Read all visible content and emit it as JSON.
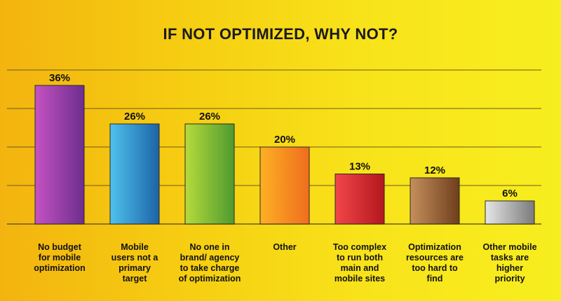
{
  "chart_data": {
    "type": "bar",
    "title": "IF NOT OPTIMIZED, WHY NOT?",
    "categories": [
      "No budget for mobile optimization",
      "Mobile users not a primary target",
      "No one in brand/ agency to take charge of optimization",
      "Other",
      "Too complex to run both main and mobile sites",
      "Optimization resources are too hard to find",
      "Other mobile tasks are higher priority"
    ],
    "category_lines": [
      [
        "No budget",
        "for mobile",
        "optimization"
      ],
      [
        "Mobile",
        "users not a",
        "primary",
        "target"
      ],
      [
        "No one in",
        "brand/ agency",
        "to take charge",
        "of optimization"
      ],
      [
        "Other"
      ],
      [
        "Too complex",
        "to run both",
        "main and",
        "mobile sites"
      ],
      [
        "Optimization",
        "resources are",
        "too hard to",
        "find"
      ],
      [
        "Other mobile",
        "tasks are",
        "higher",
        "priority"
      ]
    ],
    "values": [
      36,
      26,
      26,
      20,
      13,
      12,
      6
    ],
    "value_labels": [
      "36%",
      "26%",
      "26%",
      "20%",
      "13%",
      "12%",
      "6%"
    ],
    "ylim": [
      0,
      40
    ],
    "gridlines": [
      0,
      10,
      20,
      30,
      40
    ],
    "grid": true,
    "xlabel": "",
    "ylabel": "",
    "bar_colors": [
      [
        "#c552c2",
        "#6d2e8e"
      ],
      [
        "#4fc2ee",
        "#1c63a6"
      ],
      [
        "#b6db3c",
        "#4f9a2f"
      ],
      [
        "#fdb023",
        "#ef6d1e"
      ],
      [
        "#f2464a",
        "#b3171d"
      ],
      [
        "#c6905d",
        "#6e3e1c"
      ],
      [
        "#e6e6e6",
        "#7a7a7a"
      ]
    ]
  }
}
